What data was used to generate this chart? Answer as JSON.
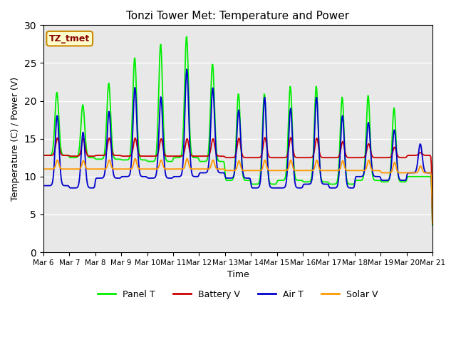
{
  "title": "Tonzi Tower Met: Temperature and Power",
  "xlabel": "Time",
  "ylabel": "Temperature (C) / Power (V)",
  "ylim": [
    0,
    30
  ],
  "yticks": [
    0,
    5,
    10,
    15,
    20,
    25,
    30
  ],
  "x_tick_labels": [
    "Mar 6",
    "Mar 7",
    "Mar 8",
    "Mar 9",
    "Mar 10",
    "Mar 11",
    "Mar 12",
    "Mar 13",
    "Mar 14",
    "Mar 15",
    "Mar 16",
    "Mar 17",
    "Mar 18",
    "Mar 19",
    "Mar 20",
    "Mar 21"
  ],
  "annotation_text": "TZ_tmet",
  "annotation_color": "#880000",
  "annotation_bg": "#ffffcc",
  "annotation_border": "#cc8800",
  "bg_color": "#e8e8e8",
  "panel_t_color": "#00ee00",
  "battery_v_color": "#cc0000",
  "air_t_color": "#0000cc",
  "solar_v_color": "#ff9900",
  "legend_labels": [
    "Panel T",
    "Battery V",
    "Air T",
    "Solar V"
  ],
  "panel_t_peaks": [
    21.5,
    19.8,
    22.8,
    26.3,
    28.2,
    29.3,
    25.5,
    21.5,
    21.5,
    22.5,
    22.5,
    21.0,
    21.2,
    19.5,
    10.0
  ],
  "panel_t_nights": [
    12.8,
    12.5,
    12.3,
    12.2,
    12.0,
    12.5,
    12.0,
    9.5,
    9.0,
    9.5,
    9.3,
    9.0,
    9.5,
    9.3,
    10.0
  ],
  "air_t_peaks": [
    18.5,
    16.2,
    19.0,
    22.3,
    21.0,
    24.8,
    22.2,
    19.2,
    21.0,
    19.5,
    21.0,
    18.5,
    17.5,
    16.5,
    14.5
  ],
  "air_t_nights": [
    8.8,
    8.5,
    9.8,
    10.0,
    9.8,
    10.0,
    10.5,
    9.8,
    8.5,
    8.5,
    9.0,
    8.5,
    10.0,
    9.5,
    10.5
  ],
  "battery_v_peaks": [
    15.3,
    15.2,
    15.3,
    15.3,
    15.2,
    15.2,
    15.2,
    15.3,
    15.4,
    15.4,
    15.3,
    14.8,
    14.5,
    14.0,
    13.2
  ],
  "battery_v_nights": [
    12.8,
    12.7,
    12.8,
    12.7,
    12.7,
    12.7,
    12.7,
    12.5,
    12.5,
    12.5,
    12.5,
    12.5,
    12.5,
    12.5,
    12.8
  ],
  "solar_v_peaks": [
    12.3,
    12.2,
    12.3,
    12.5,
    12.3,
    12.5,
    12.3,
    12.2,
    12.3,
    12.3,
    12.3,
    12.2,
    12.3,
    12.0,
    11.5
  ],
  "solar_v_nights": [
    11.0,
    11.0,
    11.0,
    11.0,
    11.0,
    11.0,
    11.0,
    10.8,
    10.8,
    10.8,
    10.8,
    10.8,
    10.8,
    10.5,
    10.5
  ]
}
